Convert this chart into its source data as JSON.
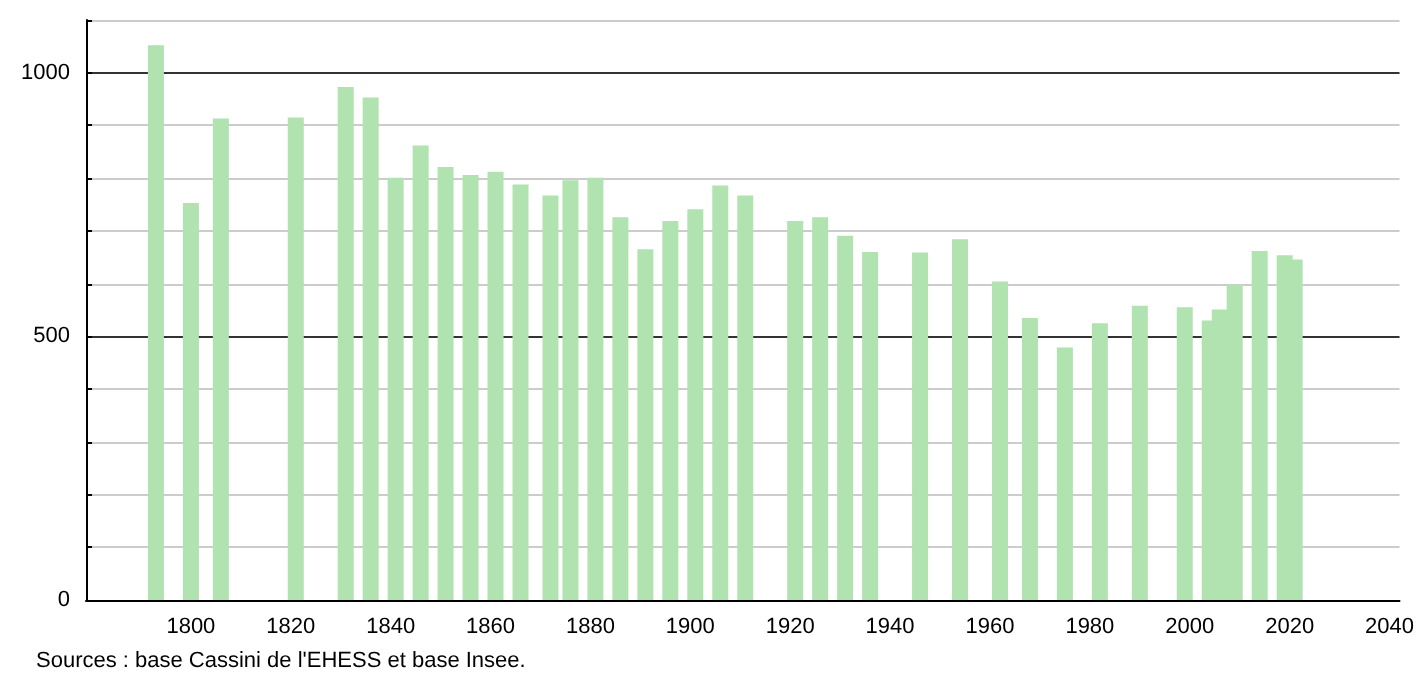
{
  "chart_data": {
    "type": "bar",
    "x": [
      1793,
      1800,
      1806,
      1821,
      1831,
      1836,
      1841,
      1846,
      1851,
      1856,
      1861,
      1866,
      1872,
      1876,
      1881,
      1886,
      1891,
      1896,
      1901,
      1906,
      1911,
      1921,
      1926,
      1931,
      1936,
      1946,
      1954,
      1962,
      1968,
      1975,
      1982,
      1990,
      1999,
      2004,
      2006,
      2009,
      2014,
      2019,
      2021
    ],
    "values": [
      1052,
      753,
      913,
      915,
      973,
      953,
      801,
      862,
      821,
      806,
      812,
      788,
      767,
      796,
      801,
      726,
      665,
      719,
      741,
      786,
      767,
      719,
      726,
      691,
      660,
      659,
      684,
      604,
      535,
      479,
      525,
      558,
      555,
      530,
      551,
      598,
      662,
      654,
      646
    ],
    "color": "#b0e3b0",
    "xlim": [
      1779,
      2042
    ],
    "xticks": [
      1800,
      1820,
      1840,
      1860,
      1880,
      1900,
      1920,
      1940,
      1960,
      1980,
      2000,
      2020,
      2040
    ],
    "ylim": [
      0,
      1100
    ],
    "yticks": [
      0,
      {
        "value": 100,
        "label": null
      },
      {
        "value": 200,
        "label": null
      },
      {
        "value": 300,
        "label": null
      },
      {
        "value": 400,
        "label": null
      },
      500,
      {
        "value": 600,
        "label": null
      },
      {
        "value": 700,
        "label": null
      },
      {
        "value": 800,
        "label": null
      },
      {
        "value": 900,
        "label": null
      },
      1000,
      {
        "value": 1100,
        "label": null
      }
    ],
    "grid": "y",
    "annotations": [
      "Sources : base Cassini de l'EHESS et base Insee."
    ]
  }
}
